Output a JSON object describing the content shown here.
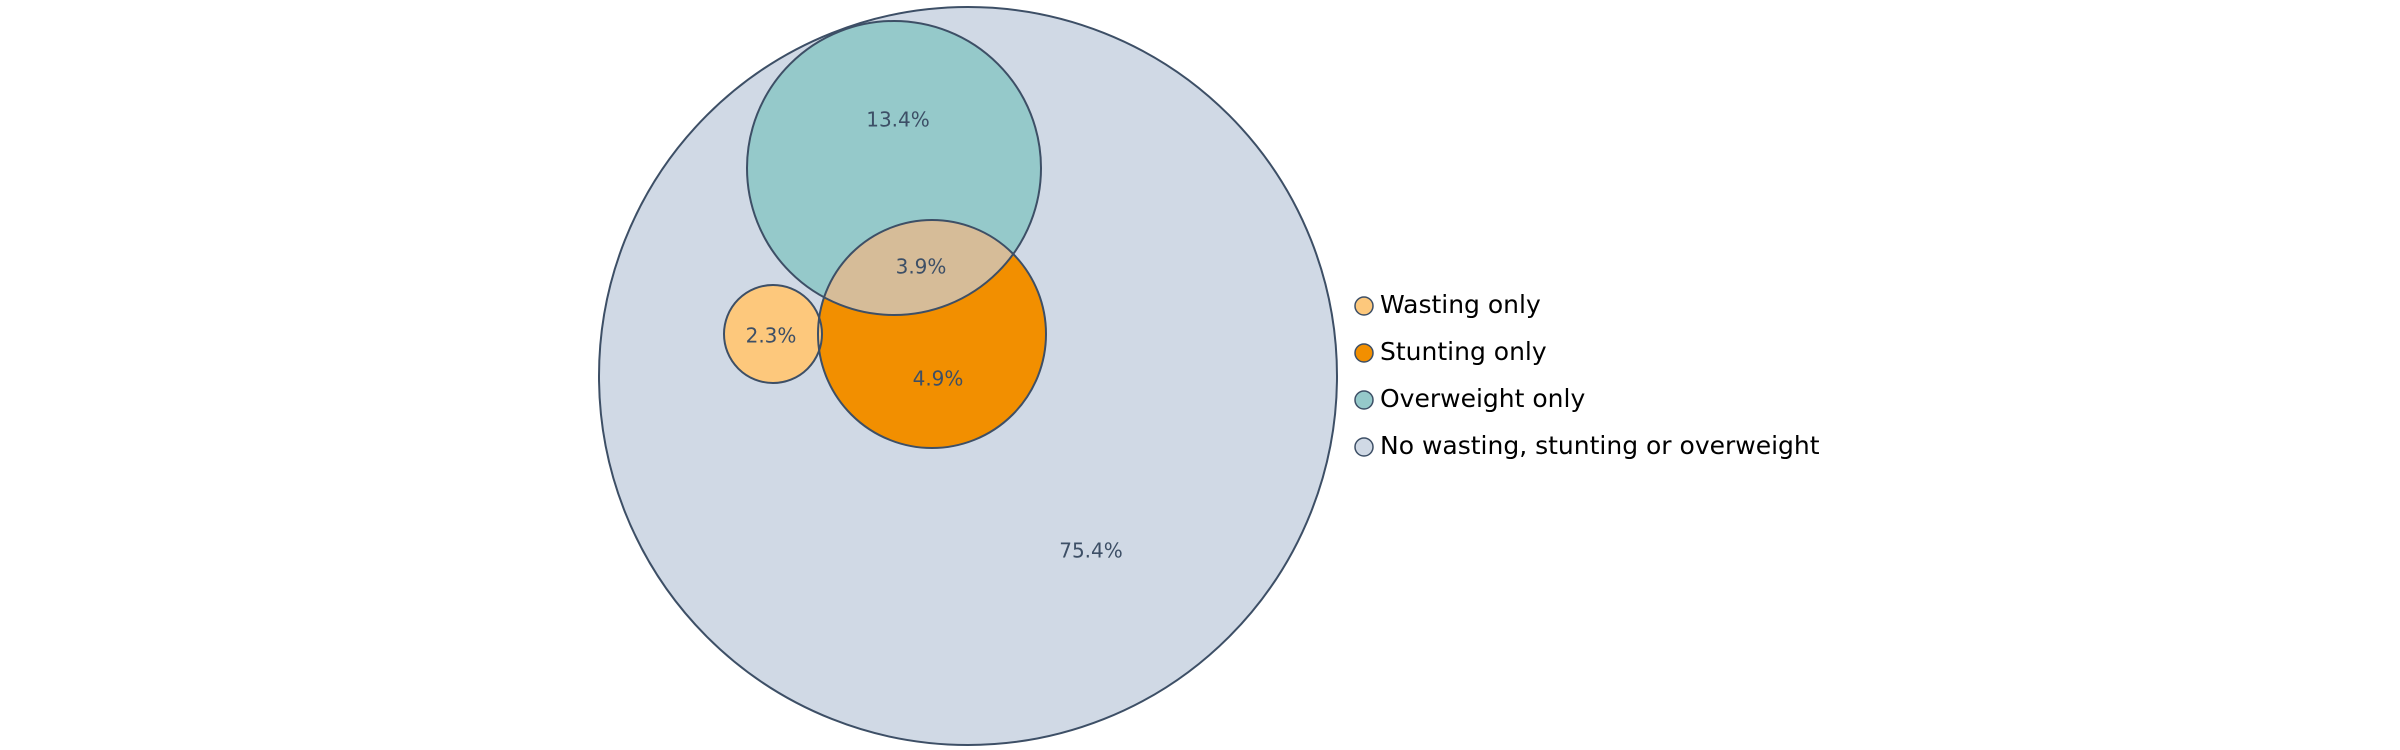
{
  "chart_data": {
    "type": "venn",
    "title": "",
    "outline_color": "#3d4f66",
    "overlap_color": "#d6bc98",
    "sets": [
      {
        "key": "none",
        "label": "No wasting, stunting or overweight",
        "value": "75.4%",
        "color": "#d0d9e5"
      },
      {
        "key": "overweight",
        "label": "Overweight only",
        "value": "13.4%",
        "color": "#95c9ca"
      },
      {
        "key": "stunting",
        "label": "Stunting only",
        "value": "4.9%",
        "color": "#f28f00"
      },
      {
        "key": "wasting",
        "label": "Wasting only",
        "value": "2.3%",
        "color": "#fdc87c"
      }
    ],
    "overlaps": [
      {
        "sets": [
          "overweight",
          "stunting"
        ],
        "value": "3.9%"
      }
    ],
    "legend": {
      "position": "right",
      "items": [
        {
          "label": "Wasting only",
          "color": "#fdc87c"
        },
        {
          "label": "Stunting only",
          "color": "#f28f00"
        },
        {
          "label": "Overweight only",
          "color": "#95c9ca"
        },
        {
          "label": "No wasting, stunting or overweight",
          "color": "#d0d9e5"
        }
      ]
    }
  }
}
